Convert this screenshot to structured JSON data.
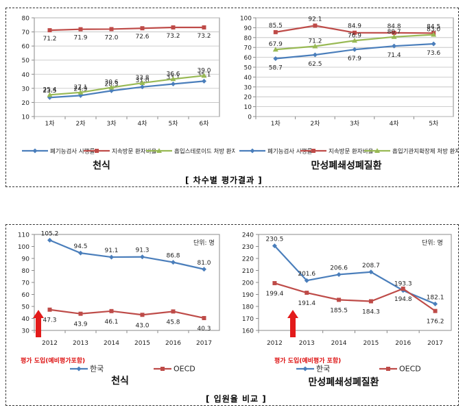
{
  "captions": {
    "top": "[ 차수별 평가결과 ]",
    "bottom": "[ 입원율 비교 ]"
  },
  "chart_data": [
    {
      "type": "line",
      "title": "천식",
      "categories": [
        "1차",
        "2차",
        "3차",
        "4차",
        "5차",
        "6차"
      ],
      "ylim": [
        10,
        80
      ],
      "yticks": [
        10,
        20,
        30,
        40,
        50,
        60,
        70,
        80
      ],
      "grid": true,
      "legend_position": "bottom",
      "series": [
        {
          "name": "폐기능검사 시행률",
          "color": "#4a7ebb",
          "marker": "diamond",
          "values": [
            23.5,
            24.9,
            28.3,
            31.0,
            33.1,
            35.1
          ]
        },
        {
          "name": "지속방문 환자비율",
          "color": "#be4b48",
          "marker": "square",
          "values": [
            71.2,
            71.9,
            72.0,
            72.6,
            73.2,
            73.2
          ]
        },
        {
          "name": "흡입스테로이드 처방 환자비율",
          "color": "#98b954",
          "marker": "triangle",
          "values": [
            25.4,
            27.1,
            30.6,
            33.8,
            36.6,
            39.0
          ]
        }
      ]
    },
    {
      "type": "line",
      "title": "만성폐쇄성폐질환",
      "categories": [
        "1차",
        "2차",
        "3차",
        "4차",
        "5차"
      ],
      "ylim": [
        0,
        100
      ],
      "yticks": [
        0,
        10,
        20,
        30,
        40,
        50,
        60,
        70,
        80,
        90,
        100
      ],
      "grid": true,
      "legend_position": "bottom",
      "series": [
        {
          "name": "폐기능검사 시행률",
          "color": "#4a7ebb",
          "marker": "diamond",
          "values": [
            58.7,
            62.5,
            67.9,
            71.4,
            73.6
          ]
        },
        {
          "name": "지속방문 환자비율",
          "color": "#be4b48",
          "marker": "square",
          "values": [
            85.5,
            92.1,
            84.9,
            84.8,
            84.5
          ]
        },
        {
          "name": "흡입기관지확장제 처방 환자비율",
          "color": "#98b954",
          "marker": "triangle",
          "values": [
            67.9,
            71.2,
            76.9,
            80.7,
            83.0
          ]
        }
      ]
    },
    {
      "type": "line",
      "title": "천식",
      "unit": "단위: 명",
      "categories": [
        "2012",
        "2013",
        "2014",
        "2015",
        "2016",
        "2017"
      ],
      "ylim": [
        30,
        110
      ],
      "yticks": [
        30,
        40,
        50,
        60,
        70,
        80,
        90,
        100,
        110
      ],
      "grid": false,
      "legend_position": "bottom",
      "annotation": "평가 도입(예비평가포함)",
      "series": [
        {
          "name": "한국",
          "color": "#4a7ebb",
          "marker": "diamond",
          "values": [
            105.2,
            94.5,
            91.1,
            91.3,
            86.8,
            81.0
          ]
        },
        {
          "name": "OECD",
          "color": "#be4b48",
          "marker": "square",
          "values": [
            47.3,
            43.9,
            46.1,
            43.0,
            45.8,
            40.3
          ]
        }
      ]
    },
    {
      "type": "line",
      "title": "만성폐쇄성폐질환",
      "unit": "단위: 명",
      "categories": [
        "2012",
        "2013",
        "2014",
        "2015",
        "2016",
        "2017"
      ],
      "ylim": [
        160,
        240
      ],
      "yticks": [
        160,
        170,
        180,
        190,
        200,
        210,
        220,
        230,
        240
      ],
      "grid": false,
      "legend_position": "bottom",
      "annotation": "평가 도입(예비평가 포함)",
      "series": [
        {
          "name": "한국",
          "color": "#4a7ebb",
          "marker": "diamond",
          "values": [
            230.5,
            201.6,
            206.6,
            208.7,
            193.3,
            182.1
          ]
        },
        {
          "name": "OECD",
          "color": "#be4b48",
          "marker": "square",
          "values": [
            199.4,
            191.4,
            185.5,
            184.3,
            194.8,
            176.2
          ]
        }
      ]
    }
  ]
}
